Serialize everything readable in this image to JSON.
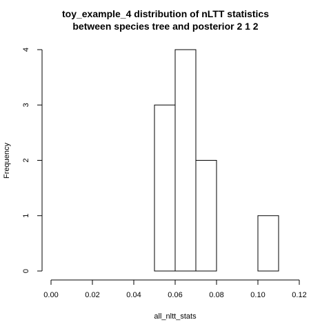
{
  "chart_data": {
    "type": "bar",
    "title_lines": [
      "toy_example_4  distribution of nLTT statistics",
      "between species tree and posterior 2 1 2"
    ],
    "xlabel": "all_nltt_stats",
    "ylabel": "Frequency",
    "xlim": [
      0.0,
      0.12
    ],
    "ylim": [
      0,
      4
    ],
    "x_ticks": [
      "0.00",
      "0.02",
      "0.04",
      "0.06",
      "0.08",
      "0.10",
      "0.12"
    ],
    "y_ticks": [
      "0",
      "1",
      "2",
      "3",
      "4"
    ],
    "bins": [
      {
        "x0": 0.05,
        "x1": 0.06,
        "count": 3
      },
      {
        "x0": 0.06,
        "x1": 0.07,
        "count": 4
      },
      {
        "x0": 0.07,
        "x1": 0.08,
        "count": 2
      },
      {
        "x0": 0.08,
        "x1": 0.09,
        "count": 0
      },
      {
        "x0": 0.09,
        "x1": 0.1,
        "count": 0
      },
      {
        "x0": 0.1,
        "x1": 0.11,
        "count": 1
      }
    ],
    "grid": false,
    "legend": "none"
  }
}
